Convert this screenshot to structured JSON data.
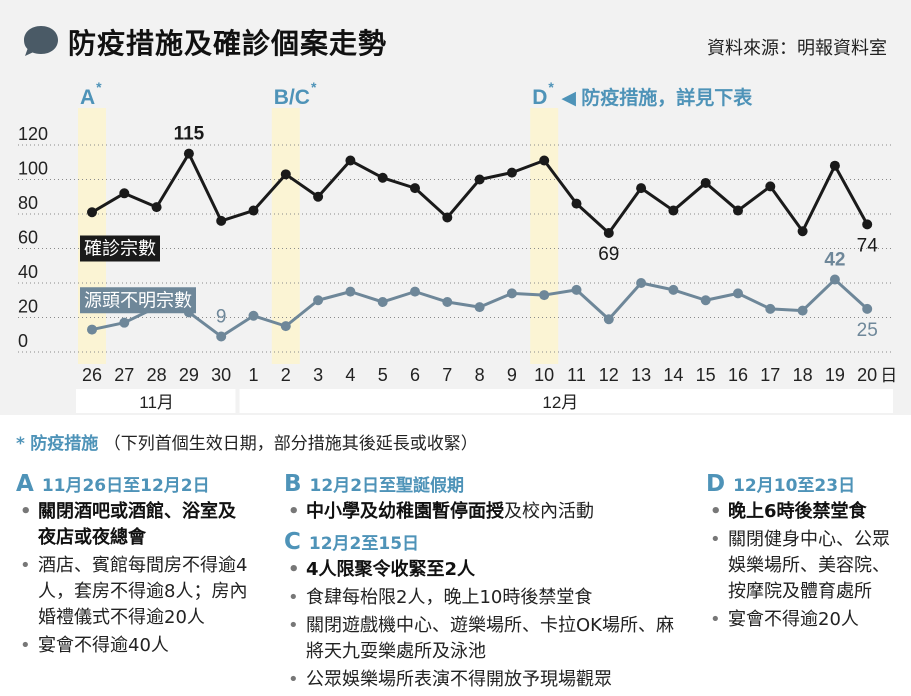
{
  "header": {
    "title": "防疫措施及確診個案走勢",
    "source": "資料來源：明報資料室"
  },
  "colors": {
    "confirmed_line": "#1a1a1a",
    "unknown_line": "#6e8799",
    "highlight": "#fbf4d4",
    "accent": "#4e93b8",
    "panel_bg": "#f2f2f2"
  },
  "chart_data": {
    "type": "line",
    "x": [
      "26",
      "27",
      "28",
      "29",
      "30",
      "1",
      "2",
      "3",
      "4",
      "5",
      "6",
      "7",
      "8",
      "9",
      "10",
      "11",
      "12",
      "13",
      "14",
      "15",
      "16",
      "17",
      "18",
      "19",
      "20"
    ],
    "x_suffix": "日",
    "month_groups": [
      {
        "label": "11月",
        "from": "26",
        "to": "30"
      },
      {
        "label": "12月",
        "from": "1",
        "to": "20"
      }
    ],
    "series": [
      {
        "name": "確診宗數",
        "values": [
          81,
          92,
          84,
          115,
          76,
          82,
          103,
          90,
          111,
          101,
          95,
          78,
          100,
          104,
          111,
          86,
          69,
          95,
          82,
          98,
          82,
          96,
          70,
          108,
          74
        ]
      },
      {
        "name": "源頭不明宗數",
        "values": [
          13,
          17,
          26,
          23,
          9,
          21,
          15,
          30,
          35,
          29,
          35,
          29,
          26,
          34,
          33,
          36,
          19,
          40,
          36,
          30,
          34,
          25,
          24,
          42,
          25
        ]
      }
    ],
    "data_labels": [
      {
        "series": 0,
        "x": "29",
        "text": "115"
      },
      {
        "series": 0,
        "x": "12",
        "text": "69"
      },
      {
        "series": 0,
        "x": "20",
        "text": "74"
      },
      {
        "series": 1,
        "x": "30",
        "text": "9"
      },
      {
        "series": 1,
        "x": "19",
        "text": "42"
      },
      {
        "series": 1,
        "x": "20",
        "text": "25"
      }
    ],
    "ylim": [
      0,
      120
    ],
    "yticks": [
      0,
      20,
      40,
      60,
      80,
      100,
      120
    ],
    "highlights": [
      {
        "x": "26",
        "label": "A",
        "mark": "*"
      },
      {
        "x": "2",
        "label": "B/C",
        "mark": "*"
      },
      {
        "x": "10",
        "label": "D",
        "mark": "*"
      }
    ],
    "highlight_note": "◀ 防疫措施，詳見下表",
    "grid": "horizontal dotted"
  },
  "measures": {
    "star": "*",
    "heading": "防疫措施",
    "heading_note": "（下列首個生效日期，部分措施其後延長或收緊）",
    "bullet": "•",
    "groups": [
      {
        "letter": "A",
        "date": "11月26日至12月2日",
        "items": [
          {
            "text": "關閉酒吧或酒館、浴室及夜店或夜總會",
            "bold": true
          },
          {
            "text": "酒店、賓館每間房不得逾4人，套房不得逾8人；房內婚禮儀式不得逾20人",
            "bold": false
          },
          {
            "text": "宴會不得逾40人",
            "bold": false
          }
        ]
      },
      {
        "letter": "B",
        "date": "12月2日至聖誕假期",
        "items": [
          {
            "text": "中小學及幼稚園暫停面授",
            "tail": "及校內活動",
            "bold": true
          }
        ]
      },
      {
        "letter": "C",
        "date": "12月2至15日",
        "items": [
          {
            "text": "4人限聚令收緊至2人",
            "bold": true
          },
          {
            "text": "食肆每枱限2人，晚上10時後禁堂食",
            "bold": false
          },
          {
            "text": "關閉遊戲機中心、遊樂場所、卡拉OK場所、麻將天九耍樂處所及泳池",
            "bold": false
          },
          {
            "text": "公眾娛樂場所表演不得開放予現場觀眾",
            "bold": false
          }
        ]
      },
      {
        "letter": "D",
        "date": "12月10至23日",
        "items": [
          {
            "text": "晚上6時後禁堂食",
            "bold": true
          },
          {
            "text": "關閉健身中心、公眾娛樂場所、美容院、按摩院及體育處所",
            "bold": false
          },
          {
            "text": "宴會不得逾20人",
            "bold": false
          }
        ]
      }
    ]
  }
}
